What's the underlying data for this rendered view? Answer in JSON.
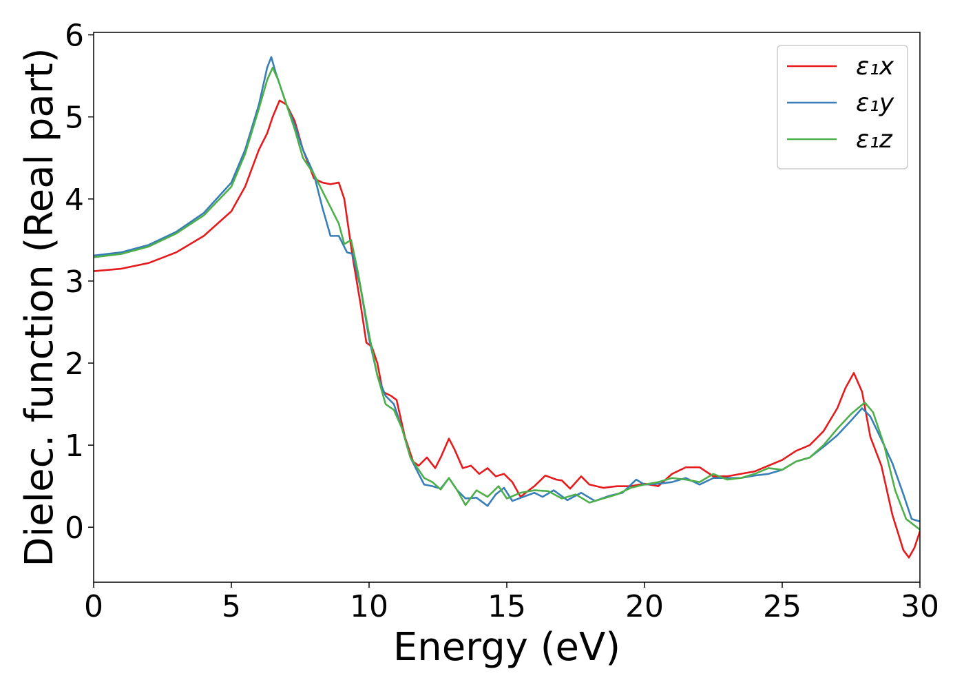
{
  "chart_data": {
    "type": "line",
    "xlabel": "Energy (eV)",
    "ylabel": "Dielec. function (Real part)",
    "xlim": [
      0,
      30
    ],
    "ylim": [
      -0.67,
      6.03
    ],
    "xticks": [
      0,
      5,
      10,
      15,
      20,
      25,
      30
    ],
    "yticks": [
      0,
      1,
      2,
      3,
      4,
      5,
      6
    ],
    "legend": "upper right",
    "series": [
      {
        "name": "ε₁x",
        "color": "#e41a1c",
        "x": [
          0,
          1,
          2,
          3,
          4,
          5,
          5.5,
          6,
          6.3,
          6.5,
          6.75,
          7,
          7.3,
          7.6,
          8,
          8.3,
          8.6,
          8.9,
          9.1,
          9.4,
          9.7,
          9.9,
          10.1,
          10.3,
          10.5,
          10.8,
          11,
          11.3,
          11.6,
          11.8,
          12.1,
          12.4,
          12.6,
          12.9,
          13.1,
          13.4,
          13.7,
          14,
          14.3,
          14.6,
          14.9,
          15.2,
          15.5,
          15.8,
          16,
          16.4,
          16.8,
          17,
          17.3,
          17.7,
          18,
          18.5,
          19,
          19.5,
          20,
          20.5,
          21,
          21.5,
          22,
          22.5,
          23,
          23.5,
          24,
          24.5,
          25,
          25.5,
          26,
          26.5,
          27,
          27.3,
          27.6,
          27.9,
          28.2,
          28.6,
          29,
          29.4,
          29.6,
          29.8,
          30
        ],
        "values": [
          3.12,
          3.15,
          3.22,
          3.35,
          3.55,
          3.85,
          4.15,
          4.6,
          4.8,
          5.0,
          5.2,
          5.15,
          4.95,
          4.6,
          4.25,
          4.2,
          4.18,
          4.2,
          4.0,
          3.3,
          2.7,
          2.25,
          2.2,
          2.0,
          1.65,
          1.6,
          1.55,
          1.1,
          0.8,
          0.75,
          0.85,
          0.72,
          0.85,
          1.08,
          0.95,
          0.72,
          0.75,
          0.65,
          0.72,
          0.62,
          0.65,
          0.55,
          0.37,
          0.45,
          0.5,
          0.63,
          0.58,
          0.57,
          0.47,
          0.62,
          0.52,
          0.48,
          0.5,
          0.5,
          0.53,
          0.5,
          0.65,
          0.73,
          0.73,
          0.62,
          0.62,
          0.65,
          0.68,
          0.75,
          0.82,
          0.93,
          1.0,
          1.17,
          1.45,
          1.7,
          1.88,
          1.65,
          1.1,
          0.75,
          0.15,
          -0.28,
          -0.37,
          -0.25,
          -0.05
        ]
      },
      {
        "name": "ε₁y",
        "color": "#377eb8",
        "x": [
          0,
          1,
          2,
          3,
          4,
          5,
          5.5,
          6,
          6.3,
          6.45,
          6.6,
          7,
          7.3,
          7.6,
          8,
          8.3,
          8.6,
          8.9,
          9.2,
          9.4,
          9.7,
          10,
          10.3,
          10.6,
          10.9,
          11.2,
          11.5,
          11.8,
          12,
          12.3,
          12.6,
          12.9,
          13.2,
          13.5,
          13.9,
          14.3,
          14.6,
          14.9,
          15.2,
          15.6,
          16,
          16.3,
          16.7,
          17.2,
          17.7,
          18.2,
          18.7,
          19.2,
          19.7,
          20,
          20.5,
          21,
          21.5,
          22,
          22.5,
          23,
          23.5,
          24,
          24.5,
          25,
          25.5,
          26,
          26.5,
          27,
          27.5,
          27.9,
          28.2,
          28.6,
          29,
          29.4,
          29.7,
          30
        ],
        "values": [
          3.31,
          3.35,
          3.44,
          3.6,
          3.83,
          4.2,
          4.6,
          5.15,
          5.6,
          5.73,
          5.55,
          5.15,
          4.9,
          4.6,
          4.3,
          3.9,
          3.55,
          3.55,
          3.35,
          3.33,
          2.9,
          2.3,
          1.85,
          1.6,
          1.5,
          1.2,
          0.85,
          0.65,
          0.52,
          0.5,
          0.47,
          0.6,
          0.45,
          0.35,
          0.36,
          0.26,
          0.4,
          0.48,
          0.32,
          0.37,
          0.42,
          0.37,
          0.45,
          0.33,
          0.42,
          0.32,
          0.38,
          0.42,
          0.58,
          0.52,
          0.53,
          0.55,
          0.6,
          0.52,
          0.6,
          0.6,
          0.6,
          0.63,
          0.65,
          0.7,
          0.8,
          0.85,
          0.98,
          1.12,
          1.3,
          1.45,
          1.35,
          1.07,
          0.78,
          0.4,
          0.1,
          0.07
        ]
      },
      {
        "name": "ε₁z",
        "color": "#4daf4a",
        "x": [
          0,
          1,
          2,
          3,
          4,
          5,
          5.5,
          6,
          6.3,
          6.5,
          6.7,
          7,
          7.3,
          7.6,
          8,
          8.3,
          8.6,
          8.9,
          9.1,
          9.35,
          9.6,
          10,
          10.3,
          10.6,
          10.9,
          11.2,
          11.5,
          11.8,
          12,
          12.3,
          12.6,
          12.9,
          13.2,
          13.5,
          13.9,
          14.3,
          14.7,
          15,
          15.5,
          16,
          16.5,
          17,
          17.5,
          18,
          18.5,
          19,
          19.5,
          20,
          20.5,
          21,
          21.5,
          22,
          22.5,
          23,
          23.5,
          24,
          24.5,
          25,
          25.5,
          26,
          26.5,
          27,
          27.5,
          28,
          28.3,
          28.7,
          29.1,
          29.5,
          30
        ],
        "values": [
          3.29,
          3.33,
          3.42,
          3.58,
          3.8,
          4.15,
          4.55,
          5.1,
          5.45,
          5.6,
          5.45,
          5.15,
          4.85,
          4.5,
          4.3,
          4.1,
          3.9,
          3.7,
          3.45,
          3.5,
          3.1,
          2.35,
          1.85,
          1.5,
          1.43,
          1.2,
          0.85,
          0.7,
          0.6,
          0.55,
          0.46,
          0.6,
          0.45,
          0.27,
          0.45,
          0.37,
          0.5,
          0.35,
          0.42,
          0.45,
          0.44,
          0.35,
          0.4,
          0.3,
          0.35,
          0.4,
          0.48,
          0.52,
          0.55,
          0.6,
          0.58,
          0.55,
          0.65,
          0.58,
          0.6,
          0.65,
          0.72,
          0.7,
          0.8,
          0.85,
          1.0,
          1.2,
          1.38,
          1.52,
          1.4,
          1.0,
          0.45,
          0.1,
          -0.03
        ]
      }
    ]
  }
}
